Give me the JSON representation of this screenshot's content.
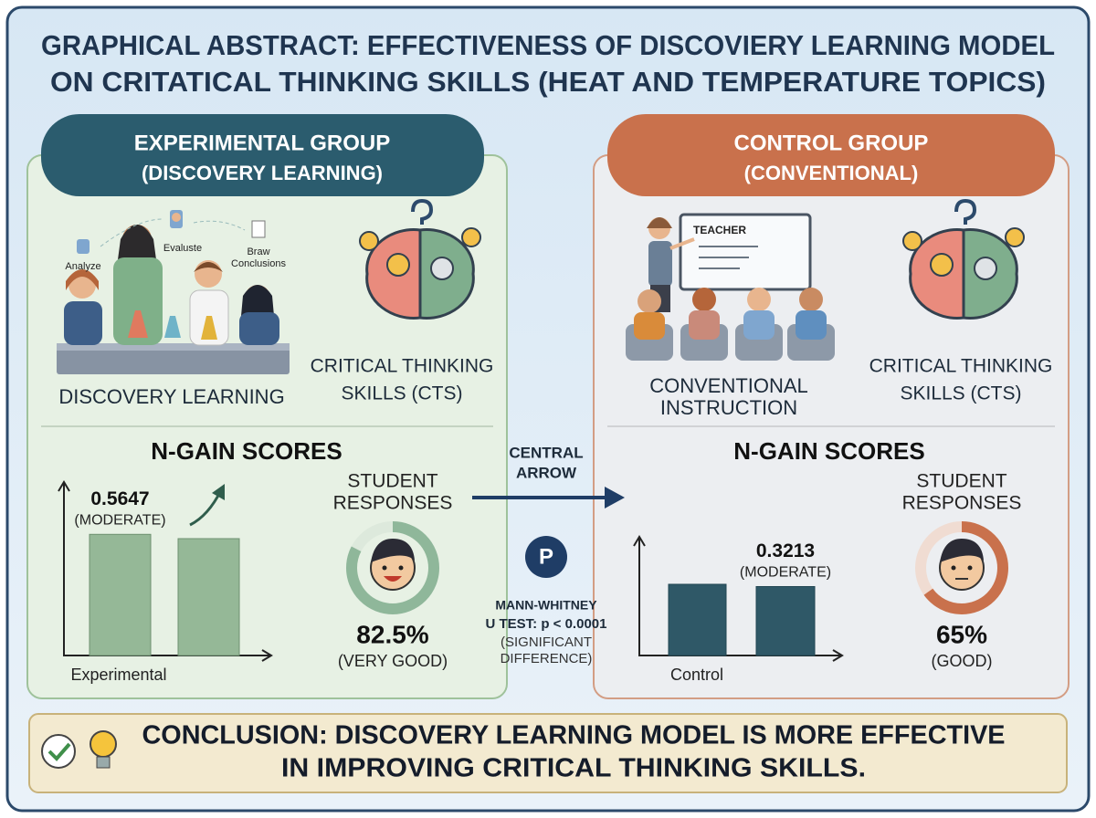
{
  "title": [
    "GRAPHICAL ABSTRACT: EFFECTIVENESS OF DISCOVIERY LEARNING MODEL",
    "ON CRITATICAL THINKING SKILLS (HEAT AND TEMPERATURE TOPICS)"
  ],
  "experimental_group": {
    "header": [
      "EXPERIMENTAL GROUP",
      "(DISCOVERY LEARNING)"
    ],
    "steps": [
      "Analyze",
      "Evaluste",
      [
        "Braw",
        "Conclusions"
      ]
    ],
    "method": [
      "DISCOVERY LEARNING"
    ],
    "outcome": [
      "CRITICAL THINKING",
      "SKILLS (CTS)"
    ],
    "n_gain_title": "N-GAIN SCORES",
    "n_gain": 0.5647,
    "n_gain_rating": "(MODERATE)",
    "group_label": "Experimental",
    "responses_title": [
      "STUDENT",
      "RESPONSES"
    ],
    "responses": {
      "value": 82.5,
      "label": "82.5%"
    },
    "responses_rating": "(VERY GOOD)"
  },
  "central": {
    "arrow_label": [
      "CENTRAL",
      "ARROW"
    ],
    "icon": "P",
    "test": [
      "MANN-WHITNEY",
      "U TEST: p < 0.0001"
    ],
    "result": [
      "(SIGNIFICANT",
      "DIFFERENCE)"
    ]
  },
  "control_group": {
    "header": [
      "CONTROL GROUP",
      "(CONVENTIONAL)"
    ],
    "board": "TEACHER",
    "method": [
      "CONVENTIONAL",
      "INSTRUCTION"
    ],
    "outcome": [
      "CRITICAL THINKING",
      "SKILLS (CTS)"
    ],
    "n_gain_title": "N-GAIN SCORES",
    "n_gain": 0.3213,
    "n_gain_rating": "(MODERATE)",
    "group_label": "Control",
    "responses_title": [
      "STUDENT",
      "RESPONSES"
    ],
    "responses": {
      "value": 65,
      "label": "65%"
    },
    "responses_rating": "(GOOD)"
  },
  "conclusion": [
    "CONCLUSION: DISCOVERY LEARNING MODEL IS MORE EFFECTIVE",
    "IN IMPROVING CRITICAL THINKING SKILLS."
  ]
}
